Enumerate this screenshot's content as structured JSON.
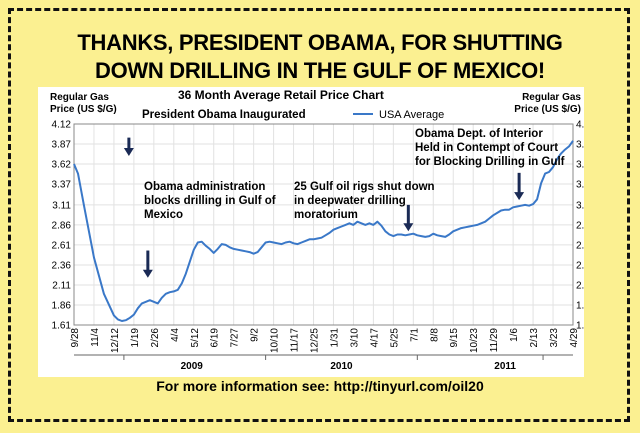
{
  "headline": {
    "line1": "THANKS, PRESIDENT OBAMA, FOR SHUTTING",
    "line2": "DOWN DRILLING IN THE GULF OF MEXICO!"
  },
  "footer": "For more information see: http://tinyurl.com/oil20",
  "colors": {
    "background": "#fbf091",
    "line": "#3a78c8",
    "arrow": "#1a2a55"
  },
  "chart_data": {
    "type": "line",
    "title": "36 Month Average Retail Price Chart",
    "ylabel_left": [
      "Regular Gas",
      "Price (US $/G)"
    ],
    "ylabel_right": [
      "Regular Gas",
      "Price (US $/G)"
    ],
    "legend": "USA Average",
    "ylim": [
      1.61,
      4.12
    ],
    "yticks": [
      "4.12",
      "3.87",
      "3.62",
      "3.37",
      "3.11",
      "2.86",
      "2.61",
      "2.36",
      "2.11",
      "1.86",
      "1.61"
    ],
    "xticks": [
      "9/28",
      "11/4",
      "12/12",
      "1/19",
      "2/26",
      "4/4",
      "5/12",
      "6/19",
      "7/27",
      "9/2",
      "10/10",
      "11/17",
      "12/25",
      "1/31",
      "3/10",
      "4/17",
      "5/25",
      "7/1",
      "8/8",
      "9/15",
      "10/23",
      "11/29",
      "1/6",
      "2/13",
      "3/23",
      "4/29"
    ],
    "years": [
      "2009",
      "2010",
      "2011"
    ],
    "year_tick_index": [
      2.5,
      9.6,
      17.2,
      23.5
    ],
    "year_label_index": [
      5.9,
      13.4,
      21.6
    ],
    "series": [
      {
        "name": "USA Average",
        "x": [
          0,
          0.2,
          0.5,
          1,
          1.5,
          2,
          2.2,
          2.4,
          2.6,
          2.8,
          3,
          3.2,
          3.4,
          3.6,
          3.8,
          4,
          4.2,
          4.4,
          4.6,
          4.8,
          5,
          5.2,
          5.4,
          5.6,
          5.8,
          6,
          6.2,
          6.4,
          6.6,
          6.8,
          7,
          7.2,
          7.4,
          7.6,
          7.8,
          8,
          8.2,
          8.4,
          8.6,
          8.8,
          9,
          9.2,
          9.4,
          9.6,
          9.8,
          10,
          10.2,
          10.4,
          10.6,
          10.8,
          11,
          11.2,
          11.4,
          11.6,
          11.8,
          12,
          12.2,
          12.4,
          12.6,
          12.8,
          13,
          13.2,
          13.4,
          13.6,
          13.8,
          14,
          14.2,
          14.4,
          14.6,
          14.8,
          15,
          15.2,
          15.4,
          15.6,
          15.8,
          16,
          16.2,
          16.4,
          16.6,
          16.8,
          17,
          17.2,
          17.4,
          17.6,
          17.8,
          18,
          18.2,
          18.4,
          18.6,
          18.8,
          19,
          19.2,
          19.4,
          19.6,
          19.8,
          20,
          20.2,
          20.4,
          20.6,
          20.8,
          21,
          21.2,
          21.4,
          21.6,
          21.8,
          22,
          22.2,
          22.4,
          22.6,
          22.8,
          23,
          23.2,
          23.4,
          23.6,
          23.8,
          24,
          24.2,
          24.4,
          24.6,
          24.8,
          25
        ],
        "values": [
          3.62,
          3.5,
          3.1,
          2.45,
          2.0,
          1.73,
          1.68,
          1.66,
          1.67,
          1.7,
          1.74,
          1.82,
          1.88,
          1.9,
          1.92,
          1.9,
          1.88,
          1.95,
          2.0,
          2.02,
          2.03,
          2.05,
          2.13,
          2.25,
          2.4,
          2.55,
          2.64,
          2.65,
          2.6,
          2.56,
          2.51,
          2.56,
          2.62,
          2.61,
          2.58,
          2.56,
          2.55,
          2.54,
          2.53,
          2.52,
          2.5,
          2.52,
          2.58,
          2.64,
          2.65,
          2.64,
          2.63,
          2.62,
          2.64,
          2.65,
          2.63,
          2.62,
          2.64,
          2.66,
          2.68,
          2.68,
          2.69,
          2.7,
          2.73,
          2.76,
          2.8,
          2.82,
          2.84,
          2.86,
          2.88,
          2.86,
          2.9,
          2.88,
          2.86,
          2.88,
          2.86,
          2.9,
          2.85,
          2.78,
          2.74,
          2.72,
          2.74,
          2.74,
          2.73,
          2.74,
          2.75,
          2.73,
          2.72,
          2.71,
          2.72,
          2.75,
          2.73,
          2.72,
          2.71,
          2.74,
          2.78,
          2.8,
          2.82,
          2.83,
          2.84,
          2.85,
          2.86,
          2.88,
          2.9,
          2.94,
          2.98,
          3.01,
          3.04,
          3.05,
          3.05,
          3.08,
          3.09,
          3.1,
          3.11,
          3.1,
          3.12,
          3.18,
          3.38,
          3.5,
          3.52,
          3.58,
          3.68,
          3.75,
          3.8,
          3.84,
          3.91
        ]
      }
    ],
    "annotations": [
      {
        "lines": [
          "President Obama Inaugurated"
        ],
        "arrow_x": 2.75,
        "arrow_from": 3.95,
        "arrow_to": 3.72
      },
      {
        "lines": [
          "Obama administration",
          "blocks drilling in Gulf of",
          "Mexico"
        ],
        "arrow_x": 3.7,
        "arrow_from": 2.54,
        "arrow_to": 2.2
      },
      {
        "lines": [
          "25 Gulf oil rigs shut down",
          "in deepwater drilling",
          "moratorium"
        ],
        "arrow_x": 16.75,
        "arrow_from": 3.11,
        "arrow_to": 2.78
      },
      {
        "lines": [
          "Obama Dept. of Interior",
          "Held in Contempt of Court",
          "for Blocking Drilling in Gulf"
        ],
        "arrow_x": 22.3,
        "arrow_from": 3.51,
        "arrow_to": 3.17
      }
    ]
  }
}
